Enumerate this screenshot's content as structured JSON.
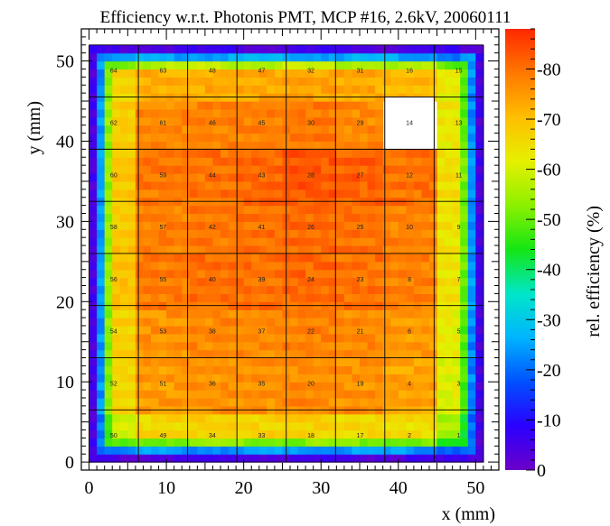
{
  "chart_data": {
    "type": "heatmap",
    "title": "Efficiency w.r.t. Photonis PMT, MCP #16, 2.6kV, 20060111",
    "xlabel": "x (mm)",
    "ylabel": "y (mm)",
    "zlabel": "rel. efficiency (%)",
    "xlim": [
      -1,
      53
    ],
    "ylim": [
      -1,
      54
    ],
    "zlim": [
      0,
      88
    ],
    "x_ticks": [
      0,
      10,
      20,
      30,
      40,
      50
    ],
    "y_ticks": [
      0,
      10,
      20,
      30,
      40,
      50
    ],
    "z_ticks": [
      0,
      10,
      20,
      30,
      40,
      50,
      60,
      70,
      80
    ],
    "sensor_extent": {
      "x": [
        0,
        51
      ],
      "y": [
        0,
        52
      ]
    },
    "pad_grid": {
      "x0": 0,
      "x1": 51,
      "y0": 0,
      "y1": 52,
      "nx": 8,
      "ny": 8
    },
    "dead_pad": 14,
    "pads": [
      {
        "id": 64,
        "col": 0,
        "row": 7,
        "eff": 66
      },
      {
        "id": 63,
        "col": 1,
        "row": 7,
        "eff": 72
      },
      {
        "id": 48,
        "col": 2,
        "row": 7,
        "eff": 73
      },
      {
        "id": 47,
        "col": 3,
        "row": 7,
        "eff": 73
      },
      {
        "id": 32,
        "col": 4,
        "row": 7,
        "eff": 74
      },
      {
        "id": 31,
        "col": 5,
        "row": 7,
        "eff": 73
      },
      {
        "id": 16,
        "col": 6,
        "row": 7,
        "eff": 71
      },
      {
        "id": 15,
        "col": 7,
        "row": 7,
        "eff": 62
      },
      {
        "id": 62,
        "col": 0,
        "row": 6,
        "eff": 68
      },
      {
        "id": 61,
        "col": 1,
        "row": 6,
        "eff": 77
      },
      {
        "id": 46,
        "col": 2,
        "row": 6,
        "eff": 78
      },
      {
        "id": 45,
        "col": 3,
        "row": 6,
        "eff": 78
      },
      {
        "id": 30,
        "col": 4,
        "row": 6,
        "eff": 79
      },
      {
        "id": 29,
        "col": 5,
        "row": 6,
        "eff": 77
      },
      {
        "id": 14,
        "col": 6,
        "row": 6,
        "eff": null
      },
      {
        "id": 13,
        "col": 7,
        "row": 6,
        "eff": 63
      },
      {
        "id": 60,
        "col": 0,
        "row": 5,
        "eff": 69
      },
      {
        "id": 59,
        "col": 1,
        "row": 5,
        "eff": 79
      },
      {
        "id": 44,
        "col": 2,
        "row": 5,
        "eff": 80
      },
      {
        "id": 43,
        "col": 3,
        "row": 5,
        "eff": 81
      },
      {
        "id": 28,
        "col": 4,
        "row": 5,
        "eff": 83
      },
      {
        "id": 27,
        "col": 5,
        "row": 5,
        "eff": 82
      },
      {
        "id": 12,
        "col": 6,
        "row": 5,
        "eff": 80
      },
      {
        "id": 11,
        "col": 7,
        "row": 5,
        "eff": 65
      },
      {
        "id": 58,
        "col": 0,
        "row": 4,
        "eff": 69
      },
      {
        "id": 57,
        "col": 1,
        "row": 4,
        "eff": 78
      },
      {
        "id": 42,
        "col": 2,
        "row": 4,
        "eff": 79
      },
      {
        "id": 41,
        "col": 3,
        "row": 4,
        "eff": 80
      },
      {
        "id": 26,
        "col": 4,
        "row": 4,
        "eff": 81
      },
      {
        "id": 25,
        "col": 5,
        "row": 4,
        "eff": 80
      },
      {
        "id": 10,
        "col": 6,
        "row": 4,
        "eff": 78
      },
      {
        "id": 9,
        "col": 7,
        "row": 4,
        "eff": 64
      },
      {
        "id": 56,
        "col": 0,
        "row": 3,
        "eff": 69
      },
      {
        "id": 55,
        "col": 1,
        "row": 3,
        "eff": 79
      },
      {
        "id": 40,
        "col": 2,
        "row": 3,
        "eff": 80
      },
      {
        "id": 39,
        "col": 3,
        "row": 3,
        "eff": 80
      },
      {
        "id": 24,
        "col": 4,
        "row": 3,
        "eff": 81
      },
      {
        "id": 23,
        "col": 5,
        "row": 3,
        "eff": 80
      },
      {
        "id": 8,
        "col": 6,
        "row": 3,
        "eff": 78
      },
      {
        "id": 7,
        "col": 7,
        "row": 3,
        "eff": 64
      },
      {
        "id": 54,
        "col": 0,
        "row": 2,
        "eff": 67
      },
      {
        "id": 53,
        "col": 1,
        "row": 2,
        "eff": 76
      },
      {
        "id": 38,
        "col": 2,
        "row": 2,
        "eff": 77
      },
      {
        "id": 37,
        "col": 3,
        "row": 2,
        "eff": 77
      },
      {
        "id": 22,
        "col": 4,
        "row": 2,
        "eff": 78
      },
      {
        "id": 21,
        "col": 5,
        "row": 2,
        "eff": 77
      },
      {
        "id": 6,
        "col": 6,
        "row": 2,
        "eff": 75
      },
      {
        "id": 5,
        "col": 7,
        "row": 2,
        "eff": 62
      },
      {
        "id": 52,
        "col": 0,
        "row": 1,
        "eff": 66
      },
      {
        "id": 51,
        "col": 1,
        "row": 1,
        "eff": 75
      },
      {
        "id": 36,
        "col": 2,
        "row": 1,
        "eff": 76
      },
      {
        "id": 35,
        "col": 3,
        "row": 1,
        "eff": 76
      },
      {
        "id": 20,
        "col": 4,
        "row": 1,
        "eff": 77
      },
      {
        "id": 19,
        "col": 5,
        "row": 1,
        "eff": 76
      },
      {
        "id": 4,
        "col": 6,
        "row": 1,
        "eff": 74
      },
      {
        "id": 3,
        "col": 7,
        "row": 1,
        "eff": 61
      },
      {
        "id": 50,
        "col": 0,
        "row": 0,
        "eff": 60
      },
      {
        "id": 49,
        "col": 1,
        "row": 0,
        "eff": 66
      },
      {
        "id": 34,
        "col": 2,
        "row": 0,
        "eff": 67
      },
      {
        "id": 33,
        "col": 3,
        "row": 0,
        "eff": 67
      },
      {
        "id": 18,
        "col": 4,
        "row": 0,
        "eff": 67
      },
      {
        "id": 17,
        "col": 5,
        "row": 0,
        "eff": 66
      },
      {
        "id": 2,
        "col": 6,
        "row": 0,
        "eff": 65
      },
      {
        "id": 1,
        "col": 7,
        "row": 0,
        "eff": 55
      }
    ],
    "colormap": [
      "#6b00c8",
      "#2a00ff",
      "#0050ff",
      "#00b4ff",
      "#00e6c8",
      "#14e614",
      "#8cf000",
      "#e6f000",
      "#ffbe00",
      "#ff7800",
      "#ff2800"
    ]
  }
}
